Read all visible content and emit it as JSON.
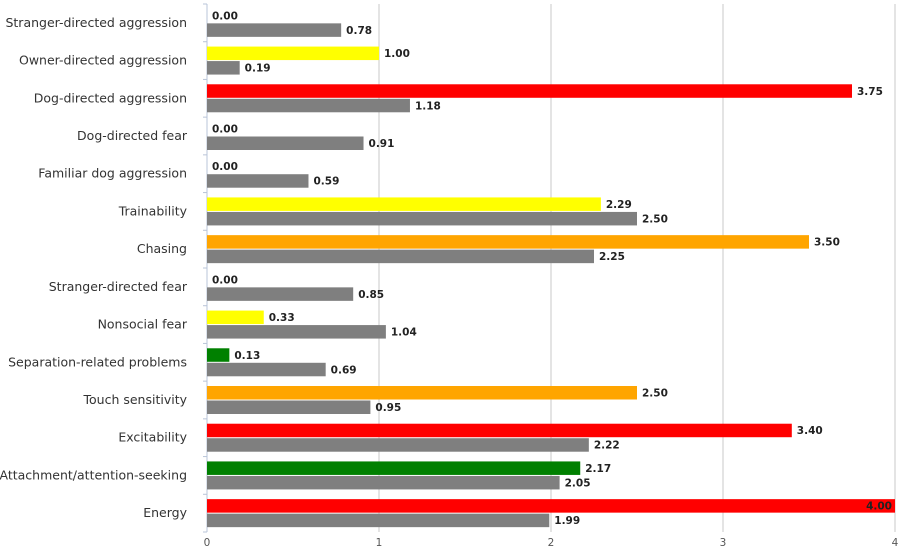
{
  "chart_data": {
    "type": "bar",
    "orientation": "horizontal",
    "categories": [
      "Stranger-directed aggression",
      "Owner-directed aggression",
      "Dog-directed aggression",
      "Dog-directed fear",
      "Familiar dog aggression",
      "Trainability",
      "Chasing",
      "Stranger-directed fear",
      "Nonsocial fear",
      "Separation-related problems",
      "Touch sensitivity",
      "Excitability",
      "Attachment/attention-seeking",
      "Energy"
    ],
    "series": [
      {
        "values": [
          0.0,
          1.0,
          3.75,
          0.0,
          0.0,
          2.29,
          3.5,
          0.0,
          0.33,
          0.13,
          2.5,
          3.4,
          2.17,
          4.0
        ],
        "value_labels": [
          "0.00",
          "1.00",
          "3.75",
          "0.00",
          "0.00",
          "2.29",
          "3.50",
          "0.00",
          "0.33",
          "0.13",
          "2.50",
          "3.40",
          "2.17",
          "4.00"
        ],
        "colors": [
          "#ffff00",
          "#ffff00",
          "#ff0000",
          "#ffff00",
          "#ffff00",
          "#ffff00",
          "#ffa500",
          "#ffff00",
          "#ffff00",
          "#008000",
          "#ffa500",
          "#ff0000",
          "#008000",
          "#ff0000"
        ]
      },
      {
        "values": [
          0.78,
          0.19,
          1.18,
          0.91,
          0.59,
          2.5,
          2.25,
          0.85,
          1.04,
          0.69,
          0.95,
          2.22,
          2.05,
          1.99
        ],
        "value_labels": [
          "0.78",
          "0.19",
          "1.18",
          "0.91",
          "0.59",
          "2.50",
          "2.25",
          "0.85",
          "1.04",
          "0.69",
          "0.95",
          "2.22",
          "2.05",
          "1.99"
        ],
        "color": "#7f7f7f"
      }
    ],
    "xlim": [
      0,
      4
    ],
    "xticks": [
      "0",
      "1",
      "2",
      "3",
      "4"
    ],
    "grid": true,
    "legend": "none"
  }
}
